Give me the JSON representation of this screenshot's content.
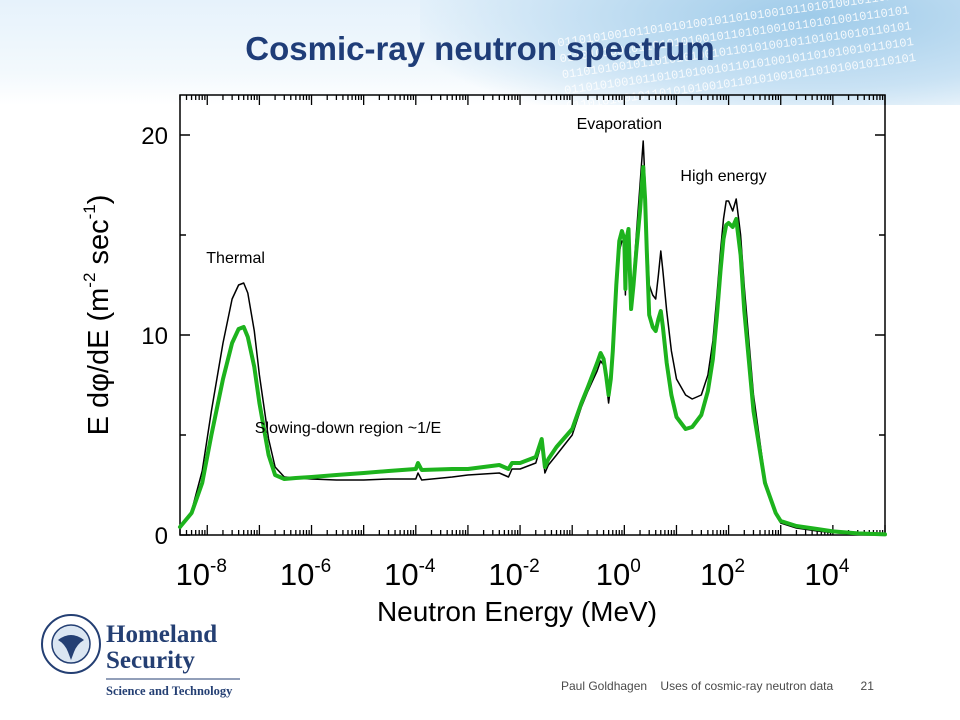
{
  "slide": {
    "title": "Cosmic-ray neutron spectrum",
    "footer": {
      "author": "Paul Goldhagen",
      "talk_title": "Uses of cosmic-ray neutron data",
      "page_number": "21"
    },
    "logo": {
      "line1": "Homeland",
      "line2": "Security",
      "line3": "Science and Technology",
      "seal_text": "U.S. DEPARTMENT OF HOMELAND SECURITY"
    },
    "banner_bits": "0110101001011010101001011010100101101010010110101"
  },
  "colors": {
    "title": "#1f3d78",
    "black_curve": "#000000",
    "green_curve": "#1db31d",
    "logo_navy": "#243f73"
  },
  "chart_data": {
    "type": "line",
    "ylabel_main": "E dφ/dE  (m",
    "ylabel_exp1": "-2",
    "ylabel_mid": " sec",
    "ylabel_exp2": "-1",
    "ylabel_end": ")",
    "xlabel": "Neutron Energy  (MeV)",
    "x_scale": "log",
    "xlim": [
      3e-09,
      100000.0
    ],
    "ylim": [
      0,
      22
    ],
    "y_ticks": [
      0,
      10,
      20
    ],
    "y_tick_labels": [
      "0",
      "10",
      "20"
    ],
    "x_tick_exponents": [
      -8,
      -6,
      -4,
      -2,
      0,
      2,
      4
    ],
    "x_tick_labels": [
      {
        "base": "10",
        "exp": "-8"
      },
      {
        "base": "10",
        "exp": "-6"
      },
      {
        "base": "10",
        "exp": "-4"
      },
      {
        "base": "10",
        "exp": "-2"
      },
      {
        "base": "10",
        "exp": "0"
      },
      {
        "base": "10",
        "exp": "2"
      },
      {
        "base": "10",
        "exp": "4"
      }
    ],
    "annotations": [
      {
        "text": "Thermal",
        "x": 3.5e-08,
        "y": 13.6
      },
      {
        "text": "Slowing-down region ~1/E",
        "x": 5e-06,
        "y": 5.1
      },
      {
        "text": "Evaporation",
        "x": 0.8,
        "y": 20.3
      },
      {
        "text": "High energy",
        "x": 80,
        "y": 17.7
      }
    ],
    "series": [
      {
        "color": "#000000",
        "stroke_width": 1.5,
        "points": [
          [
            3e-09,
            0.3
          ],
          [
            5e-09,
            1.2
          ],
          [
            8e-09,
            3.2
          ],
          [
            1.2e-08,
            6.2
          ],
          [
            2e-08,
            9.6
          ],
          [
            3e-08,
            11.8
          ],
          [
            4e-08,
            12.5
          ],
          [
            5e-08,
            12.6
          ],
          [
            6e-08,
            12.1
          ],
          [
            8e-08,
            10.2
          ],
          [
            1e-07,
            8.0
          ],
          [
            1.5e-07,
            4.8
          ],
          [
            2e-07,
            3.4
          ],
          [
            3e-07,
            2.9
          ],
          [
            5e-07,
            2.85
          ],
          [
            1e-06,
            2.8
          ],
          [
            3e-06,
            2.75
          ],
          [
            1e-05,
            2.75
          ],
          [
            3e-05,
            2.8
          ],
          [
            0.0001,
            2.8
          ],
          [
            0.00011,
            3.1
          ],
          [
            0.00013,
            2.75
          ],
          [
            0.0005,
            2.9
          ],
          [
            0.001,
            3.0
          ],
          [
            0.002,
            3.05
          ],
          [
            0.004,
            3.1
          ],
          [
            0.006,
            2.9
          ],
          [
            0.007,
            3.3
          ],
          [
            0.01,
            3.3
          ],
          [
            0.02,
            3.6
          ],
          [
            0.026,
            4.6
          ],
          [
            0.03,
            3.1
          ],
          [
            0.035,
            3.5
          ],
          [
            0.05,
            4.0
          ],
          [
            0.1,
            5.0
          ],
          [
            0.15,
            6.4
          ],
          [
            0.2,
            7.2
          ],
          [
            0.3,
            8.2
          ],
          [
            0.35,
            8.7
          ],
          [
            0.4,
            8.5
          ],
          [
            0.45,
            7.6
          ],
          [
            0.5,
            6.6
          ],
          [
            0.55,
            7.5
          ],
          [
            0.6,
            8.8
          ],
          [
            0.7,
            12.0
          ],
          [
            0.8,
            14.2
          ],
          [
            0.9,
            14.7
          ],
          [
            1.0,
            14.6
          ],
          [
            1.05,
            12.0
          ],
          [
            1.1,
            14.5
          ],
          [
            1.2,
            15.2
          ],
          [
            1.35,
            11.6
          ],
          [
            1.5,
            13.0
          ],
          [
            1.7,
            15.0
          ],
          [
            2.0,
            17.5
          ],
          [
            2.3,
            19.7
          ],
          [
            2.5,
            17.6
          ],
          [
            2.7,
            15.2
          ],
          [
            3.0,
            12.5
          ],
          [
            3.5,
            12.0
          ],
          [
            4.0,
            11.8
          ],
          [
            4.5,
            13.0
          ],
          [
            5.0,
            14.2
          ],
          [
            5.5,
            13.2
          ],
          [
            6.5,
            11.2
          ],
          [
            8,
            9.2
          ],
          [
            10,
            7.8
          ],
          [
            15,
            7.0
          ],
          [
            20,
            6.8
          ],
          [
            30,
            7.0
          ],
          [
            40,
            8.0
          ],
          [
            50,
            9.7
          ],
          [
            60,
            12.0
          ],
          [
            70,
            14.2
          ],
          [
            80,
            15.8
          ],
          [
            90,
            16.7
          ],
          [
            100,
            16.7
          ],
          [
            120,
            16.2
          ],
          [
            140,
            16.8
          ],
          [
            170,
            15.0
          ],
          [
            200,
            12.4
          ],
          [
            300,
            7.0
          ],
          [
            500,
            2.8
          ],
          [
            800,
            1.0
          ],
          [
            1000,
            0.6
          ],
          [
            2000,
            0.35
          ],
          [
            5000,
            0.2
          ],
          [
            10000,
            0.12
          ],
          [
            30000,
            0.06
          ],
          [
            100000,
            0.02
          ]
        ]
      },
      {
        "color": "#1db31d",
        "stroke_width": 4,
        "points": [
          [
            3e-09,
            0.4
          ],
          [
            5e-09,
            1.1
          ],
          [
            8e-09,
            2.6
          ],
          [
            1.2e-08,
            5.0
          ],
          [
            2e-08,
            7.8
          ],
          [
            3e-08,
            9.6
          ],
          [
            4e-08,
            10.3
          ],
          [
            5e-08,
            10.4
          ],
          [
            6e-08,
            9.9
          ],
          [
            8e-08,
            8.4
          ],
          [
            1e-07,
            6.6
          ],
          [
            1.5e-07,
            4.0
          ],
          [
            2e-07,
            3.0
          ],
          [
            3e-07,
            2.8
          ],
          [
            5e-07,
            2.85
          ],
          [
            1e-06,
            2.9
          ],
          [
            3e-06,
            3.0
          ],
          [
            1e-05,
            3.1
          ],
          [
            3e-05,
            3.2
          ],
          [
            0.0001,
            3.3
          ],
          [
            0.00011,
            3.6
          ],
          [
            0.00013,
            3.25
          ],
          [
            0.0005,
            3.3
          ],
          [
            0.001,
            3.3
          ],
          [
            0.002,
            3.4
          ],
          [
            0.004,
            3.5
          ],
          [
            0.006,
            3.3
          ],
          [
            0.007,
            3.6
          ],
          [
            0.01,
            3.6
          ],
          [
            0.02,
            3.9
          ],
          [
            0.026,
            4.8
          ],
          [
            0.03,
            3.4
          ],
          [
            0.035,
            3.8
          ],
          [
            0.05,
            4.4
          ],
          [
            0.1,
            5.3
          ],
          [
            0.15,
            6.6
          ],
          [
            0.2,
            7.4
          ],
          [
            0.3,
            8.6
          ],
          [
            0.35,
            9.1
          ],
          [
            0.4,
            8.8
          ],
          [
            0.45,
            7.9
          ],
          [
            0.5,
            7.0
          ],
          [
            0.55,
            7.8
          ],
          [
            0.6,
            9.2
          ],
          [
            0.7,
            12.5
          ],
          [
            0.8,
            14.7
          ],
          [
            0.9,
            15.2
          ],
          [
            1.0,
            14.8
          ],
          [
            1.05,
            12.3
          ],
          [
            1.1,
            14.8
          ],
          [
            1.2,
            15.3
          ],
          [
            1.35,
            11.3
          ],
          [
            1.5,
            12.5
          ],
          [
            1.7,
            14.2
          ],
          [
            2.0,
            16.2
          ],
          [
            2.3,
            18.4
          ],
          [
            2.5,
            16.8
          ],
          [
            2.7,
            14.2
          ],
          [
            3.0,
            11.0
          ],
          [
            3.5,
            10.4
          ],
          [
            4.0,
            10.2
          ],
          [
            4.5,
            10.8
          ],
          [
            5.0,
            11.2
          ],
          [
            5.5,
            10.4
          ],
          [
            6.5,
            8.6
          ],
          [
            8,
            7.0
          ],
          [
            10,
            5.9
          ],
          [
            15,
            5.3
          ],
          [
            20,
            5.4
          ],
          [
            30,
            6.0
          ],
          [
            40,
            7.2
          ],
          [
            50,
            8.8
          ],
          [
            60,
            11.0
          ],
          [
            70,
            13.2
          ],
          [
            80,
            14.8
          ],
          [
            90,
            15.5
          ],
          [
            100,
            15.6
          ],
          [
            120,
            15.4
          ],
          [
            140,
            15.8
          ],
          [
            170,
            14.0
          ],
          [
            200,
            11.2
          ],
          [
            300,
            6.2
          ],
          [
            500,
            2.6
          ],
          [
            800,
            1.1
          ],
          [
            1000,
            0.7
          ],
          [
            2000,
            0.45
          ],
          [
            5000,
            0.3
          ],
          [
            10000,
            0.18
          ],
          [
            30000,
            0.08
          ],
          [
            100000,
            0.03
          ]
        ]
      }
    ]
  }
}
